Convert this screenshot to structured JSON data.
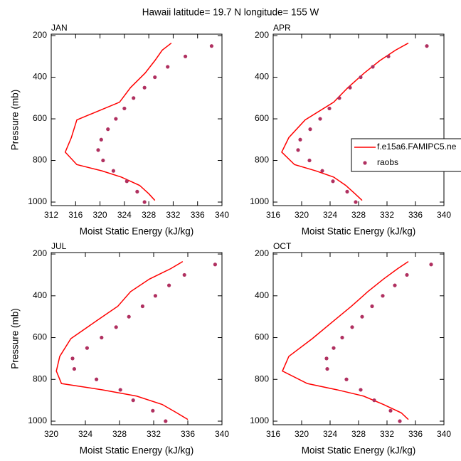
{
  "title": "Hawaii  latitude= 19.7 N longitude= 155 W",
  "chart_data": [
    {
      "type": "line",
      "title": "JAN",
      "xlabel": "Moist Static Energy (kJ/kg)",
      "ylabel": "Pressure (mb)",
      "xlim": [
        312,
        340
      ],
      "xticks": [
        312,
        316,
        320,
        324,
        328,
        332,
        336,
        340
      ],
      "ylim": [
        1017,
        193
      ],
      "yticks": [
        200,
        400,
        600,
        800,
        1000
      ],
      "series": [
        {
          "style": "line",
          "color": "#ff0000",
          "x": [
            331.7,
            330.2,
            329,
            327.4,
            325,
            323.2,
            316.2,
            315.3,
            314.3,
            316.2,
            320.3,
            323.5,
            326.5,
            328,
            329
          ],
          "values": [
            236,
            270,
            320,
            380,
            450,
            520,
            605,
            690,
            760,
            820,
            850,
            880,
            920,
            960,
            992
          ]
        },
        {
          "style": "markers",
          "color": "#b03060",
          "x": [
            338.3,
            334,
            331.1,
            329,
            327.3,
            325.5,
            324,
            322.6,
            321.3,
            320.2,
            319.7,
            320.5,
            322.2,
            324.4,
            326.1,
            327.3
          ],
          "values": [
            250,
            300,
            350,
            400,
            450,
            500,
            550,
            600,
            650,
            700,
            750,
            800,
            850,
            900,
            950,
            1000
          ]
        }
      ]
    },
    {
      "type": "line",
      "title": "APR",
      "xlabel": "Moist Static Energy (kJ/kg)",
      "xlim": [
        316,
        340
      ],
      "xticks": [
        316,
        320,
        324,
        328,
        332,
        336,
        340
      ],
      "ylim": [
        1017,
        193
      ],
      "yticks": [
        200,
        400,
        600,
        800,
        1000
      ],
      "legend": "right",
      "series": [
        {
          "name": "f.e15a6.FAMIPC5.ne",
          "style": "line",
          "color": "#ff0000",
          "x": [
            335,
            333.2,
            331,
            328.8,
            326.5,
            324.5,
            320.5,
            318.2,
            317.2,
            319,
            322,
            324.5,
            326.2,
            327.5,
            328.5
          ],
          "values": [
            236,
            270,
            320,
            380,
            450,
            520,
            605,
            690,
            760,
            820,
            850,
            880,
            920,
            960,
            992
          ]
        },
        {
          "name": "raobs",
          "style": "markers",
          "color": "#b03060",
          "x": [
            337.6,
            332.2,
            330,
            328.3,
            326.8,
            325.3,
            323.9,
            322.6,
            321.2,
            319.8,
            319.5,
            321.1,
            322.9,
            324.4,
            326.4,
            327.6
          ],
          "values": [
            250,
            300,
            350,
            400,
            450,
            500,
            550,
            600,
            650,
            700,
            750,
            800,
            850,
            900,
            950,
            1000
          ]
        }
      ]
    },
    {
      "type": "line",
      "title": "JUL",
      "xlabel": "Moist Static Energy (kJ/kg)",
      "ylabel": "Pressure (mb)",
      "xlim": [
        320,
        340
      ],
      "xticks": [
        320,
        324,
        328,
        332,
        336,
        340
      ],
      "ylim": [
        1017,
        193
      ],
      "yticks": [
        200,
        400,
        600,
        800,
        1000
      ],
      "series": [
        {
          "style": "line",
          "color": "#ff0000",
          "x": [
            335.4,
            334,
            331.5,
            329.3,
            327.8,
            325.3,
            322.3,
            321,
            320.6,
            321.2,
            326,
            330,
            333,
            334.7,
            336
          ],
          "values": [
            236,
            270,
            320,
            380,
            450,
            520,
            605,
            690,
            760,
            820,
            850,
            880,
            920,
            960,
            992
          ]
        },
        {
          "style": "markers",
          "color": "#b03060",
          "x": [
            339.2,
            335.6,
            333.8,
            332.2,
            330.7,
            329.1,
            327.6,
            325.9,
            324.2,
            322.5,
            322.7,
            325.3,
            328.1,
            329.6,
            331.9,
            333.4
          ],
          "values": [
            250,
            300,
            350,
            400,
            450,
            500,
            550,
            600,
            650,
            700,
            750,
            800,
            850,
            900,
            950,
            1000
          ]
        }
      ]
    },
    {
      "type": "line",
      "title": "OCT",
      "xlabel": "Moist Static Energy (kJ/kg)",
      "xlim": [
        316,
        340
      ],
      "xticks": [
        316,
        320,
        324,
        328,
        332,
        336,
        340
      ],
      "ylim": [
        1017,
        193
      ],
      "yticks": [
        200,
        400,
        600,
        800,
        1000
      ],
      "series": [
        {
          "style": "line",
          "color": "#ff0000",
          "x": [
            335,
            333.5,
            331.5,
            329.3,
            327,
            324.5,
            321.5,
            318.2,
            317.3,
            320.8,
            325,
            328.7,
            331.5,
            334,
            335
          ],
          "values": [
            236,
            270,
            320,
            380,
            450,
            520,
            605,
            690,
            760,
            820,
            850,
            880,
            920,
            960,
            992
          ]
        },
        {
          "style": "markers",
          "color": "#b03060",
          "x": [
            338.2,
            334.8,
            333.1,
            331.4,
            329.9,
            328.5,
            327.1,
            325.7,
            324.5,
            323.5,
            323.6,
            326.3,
            328.3,
            330.2,
            332.5,
            333.8
          ],
          "values": [
            250,
            300,
            350,
            400,
            450,
            500,
            550,
            600,
            650,
            700,
            750,
            800,
            850,
            900,
            950,
            1000
          ]
        }
      ]
    }
  ]
}
